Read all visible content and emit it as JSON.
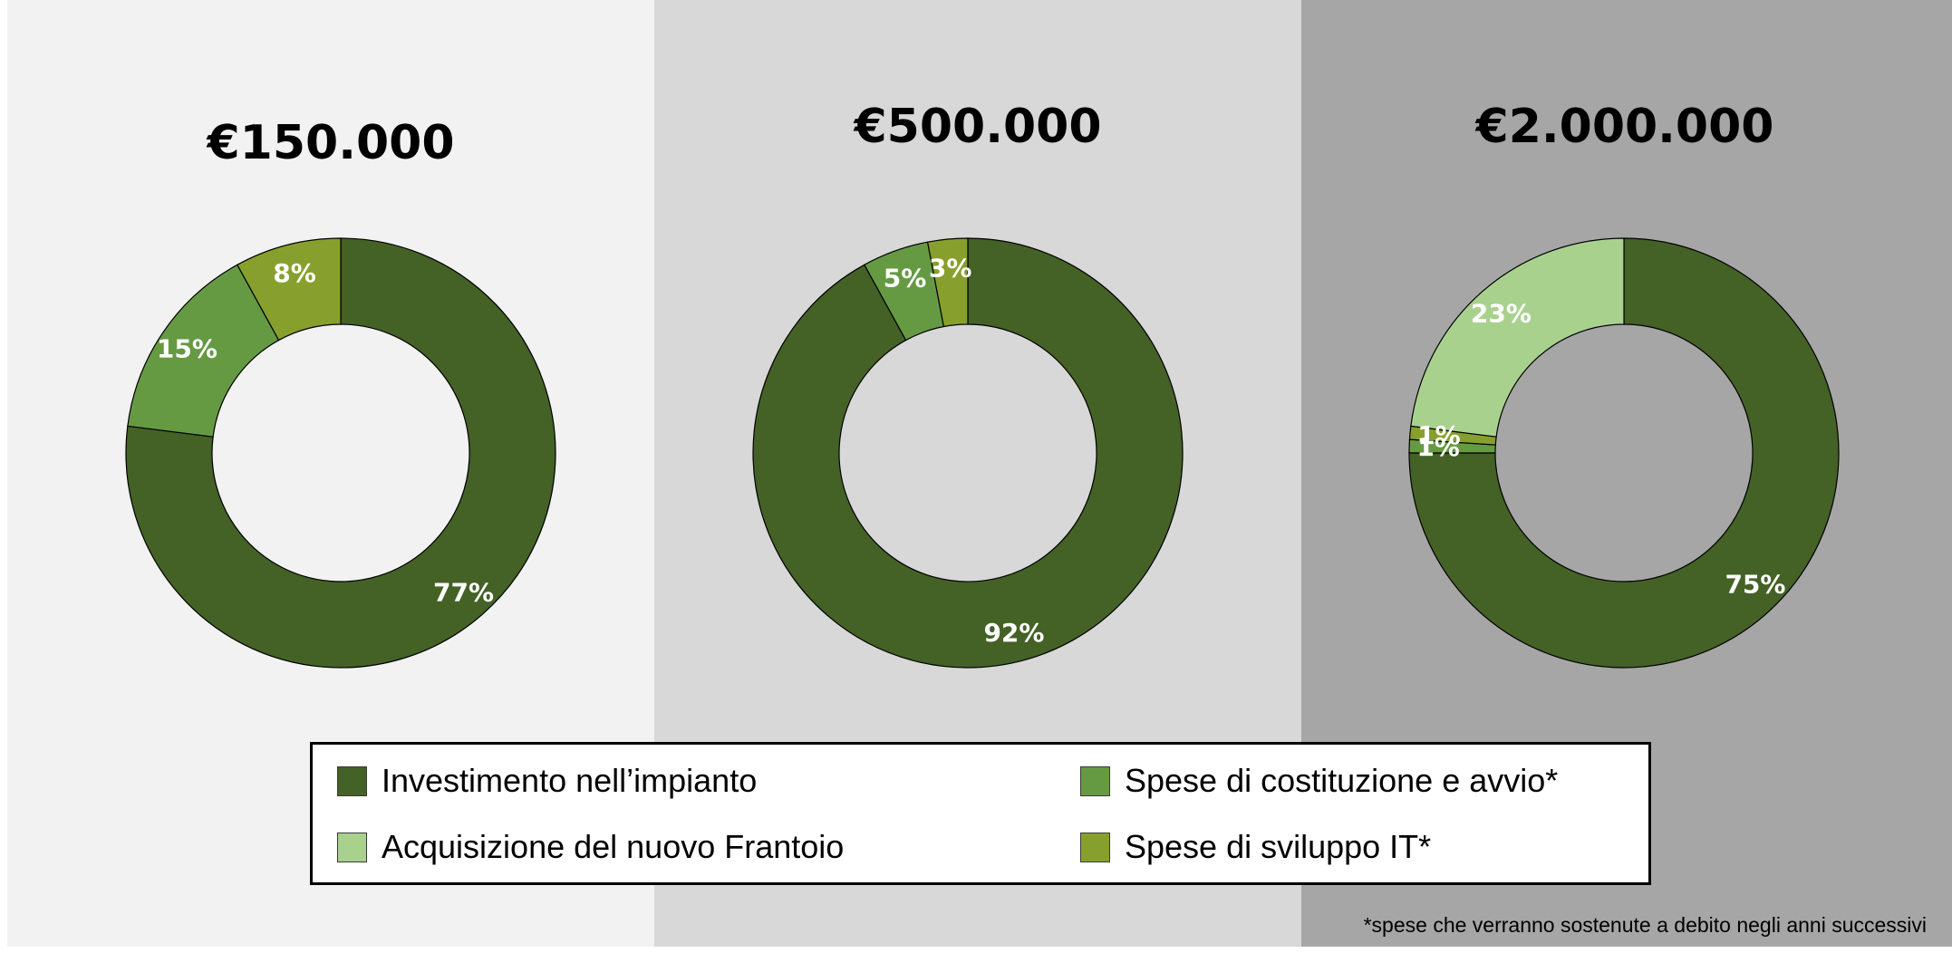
{
  "chart_data": [
    {
      "type": "pie",
      "donut": true,
      "title": "€150.000",
      "background": "#f2f2f2",
      "slices": [
        {
          "category": "Investimento nell’impianto",
          "value": 77,
          "label": "77%",
          "color": "#446126"
        },
        {
          "category": "Spese di costituzione e avvio*",
          "value": 15,
          "label": "15%",
          "color": "#659a43"
        },
        {
          "category": "Spese di sviluppo IT*",
          "value": 8,
          "label": "8%",
          "color": "#87a02d"
        }
      ]
    },
    {
      "type": "pie",
      "donut": true,
      "title": "€500.000",
      "background": "#d8d8d8",
      "slices": [
        {
          "category": "Investimento nell’impianto",
          "value": 92,
          "label": "92%",
          "color": "#446126"
        },
        {
          "category": "Spese di costituzione e avvio*",
          "value": 5,
          "label": "5%",
          "color": "#659a43"
        },
        {
          "category": "Spese di sviluppo IT*",
          "value": 3,
          "label": "3%",
          "color": "#87a02d"
        }
      ]
    },
    {
      "type": "pie",
      "donut": true,
      "title": "€2.000.000",
      "background": "#a6a6a6",
      "slices": [
        {
          "category": "Investimento nell’impianto",
          "value": 75,
          "label": "75%",
          "color": "#446126"
        },
        {
          "category": "Spese di costituzione e avvio*",
          "value": 1,
          "label": "1%",
          "color": "#659a43"
        },
        {
          "category": "Spese di sviluppo IT*",
          "value": 1,
          "label": "1%",
          "color": "#87a02d"
        },
        {
          "category": "Acquisizione del nuovo Frantoio",
          "value": 23,
          "label": "23%",
          "color": "#a9d18e"
        }
      ]
    }
  ],
  "legend": {
    "placement": "bottom",
    "items": [
      {
        "label": "Investimento nell’impianto",
        "color": "#446126"
      },
      {
        "label": "Spese di costituzione e avvio*",
        "color": "#659a43"
      },
      {
        "label": "Acquisizione del nuovo Frantoio",
        "color": "#a9d18e"
      },
      {
        "label": "Spese di sviluppo IT*",
        "color": "#87a02d"
      }
    ]
  },
  "footnote": "*spese che verranno sostenute a debito negli anni successivi"
}
